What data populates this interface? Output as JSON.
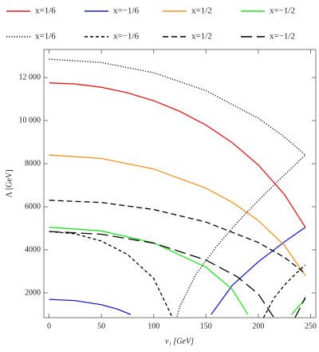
{
  "chart_data": {
    "type": "line",
    "xlabel": "v₁ [GeV]",
    "ylabel": "Λ [GeV]",
    "xlim": [
      -5,
      255
    ],
    "ylim": [
      850,
      13300
    ],
    "xticks": [
      0,
      50,
      100,
      150,
      200,
      250
    ],
    "yticks": [
      2000,
      4000,
      6000,
      8000,
      {
        "value": 10000,
        "label": "10 000"
      },
      {
        "value": 12000,
        "label": "12 000"
      }
    ],
    "legend": "top",
    "series": [
      {
        "name": "x=1/6",
        "color": "#e3191c",
        "dash": "solid",
        "x": [
          0,
          25,
          50,
          75,
          100,
          125,
          150,
          175,
          200,
          225,
          245
        ],
        "values": [
          11750,
          11700,
          11549,
          11292,
          10923,
          10429,
          9791,
          8980,
          7941,
          6568,
          5050
        ]
      },
      {
        "name": "x=−1/6",
        "color": "#1c1cc6",
        "dash": "solid",
        "x": [
          0,
          25,
          50,
          65,
          78,
          120,
          155,
          175,
          200,
          225,
          245
        ],
        "values": [
          1700,
          1642,
          1453,
          1255,
          1000,
          null,
          1000,
          2343,
          3444,
          4369,
          5050
        ]
      },
      {
        "name": "x=1/2",
        "color": "#f5921e",
        "dash": "solid",
        "x": [
          0,
          50,
          100,
          150,
          175,
          200,
          225,
          245
        ],
        "values": [
          8400,
          8243,
          7753,
          6859,
          6210,
          5363,
          4202,
          2800
        ]
      },
      {
        "name": "x=−1/2",
        "color": "#22e022",
        "dash": "solid",
        "x": [
          0,
          50,
          100,
          150,
          175,
          190,
          210,
          232,
          238,
          245
        ],
        "values": [
          5050,
          4879,
          4326,
          3197,
          2170,
          1000,
          null,
          1000,
          1350,
          1700
        ]
      },
      {
        "name": "x=1/6",
        "color": "#000000",
        "dash": "dotted",
        "x": [
          0,
          50,
          100,
          150,
          200,
          225,
          245,
          245,
          220,
          200,
          180,
          160,
          140,
          125,
          122
        ],
        "values": [
          12850,
          12696,
          12222,
          11388,
          10105,
          9241,
          8400,
          8400,
          7251,
          6291,
          5274,
          4159,
          2832,
          1367,
          850
        ]
      },
      {
        "name": "x=−1/6",
        "color": "#000000",
        "dash": "short",
        "x": [
          0,
          25,
          50,
          75,
          100,
          118,
          160,
          205,
          215,
          225,
          235,
          245
        ],
        "values": [
          4850,
          4743,
          4408,
          3783,
          2674,
          850,
          null,
          850,
          1759,
          2363,
          2860,
          3300
        ]
      },
      {
        "name": "x=1/2",
        "color": "#000000",
        "dash": "medium",
        "x": [
          0,
          50,
          100,
          150,
          200,
          225,
          245
        ],
        "values": [
          6300,
          6196,
          5872,
          5289,
          4342,
          3648,
          2900
        ]
      },
      {
        "name": "x=−1/2",
        "color": "#000000",
        "dash": "long",
        "x": [
          0,
          50,
          100,
          150,
          180,
          200,
          215,
          225,
          235,
          240,
          245
        ],
        "values": [
          4850,
          4721,
          4312,
          3526,
          2748,
          1949,
          850,
          null,
          850,
          1300,
          1800
        ]
      }
    ]
  }
}
